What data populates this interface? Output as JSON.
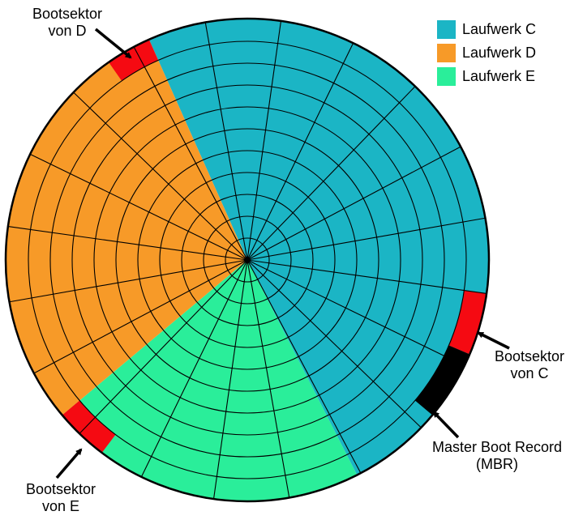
{
  "colors": {
    "drive_c": "#1bb5c5",
    "drive_d": "#f79a28",
    "drive_e": "#2aee9a",
    "boot_sector": "#f50a12",
    "mbr": "#000000",
    "grid_lines": "#000000"
  },
  "legend": [
    {
      "label": "Laufwerk C",
      "color": "#1bb5c5"
    },
    {
      "label": "Laufwerk D",
      "color": "#f79a28"
    },
    {
      "label": "Laufwerk E",
      "color": "#2aee9a"
    }
  ],
  "callouts": {
    "boot_d": {
      "line1": "Bootsektor",
      "line2": "von D"
    },
    "boot_c": {
      "line1": "Bootsektor",
      "line2": "von C"
    },
    "mbr": {
      "line1": "Master Boot Record",
      "line2": "(MBR)"
    },
    "boot_e": {
      "line1": "Bootsektor",
      "line2": "von E"
    }
  }
}
